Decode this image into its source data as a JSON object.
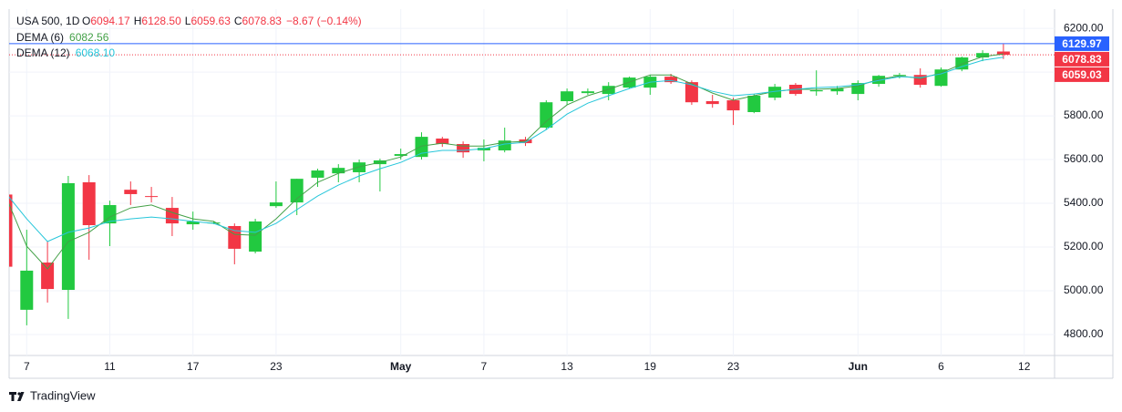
{
  "chart_data": {
    "type": "candlestick",
    "title": "USA 500, 1D",
    "quote": [
      {
        "label": "O",
        "value": 6094.17
      },
      {
        "label": "H",
        "value": 6128.5,
        "value_label": "6128.50"
      },
      {
        "label": "L",
        "value": 6059.63
      },
      {
        "label": "C",
        "value": 6078.83
      }
    ],
    "change": {
      "value": -8.67,
      "label": "−8.67 (−0.14%)"
    },
    "categories": [
      null,
      "7",
      null,
      null,
      null,
      "11",
      null,
      null,
      null,
      "17",
      null,
      null,
      null,
      "23",
      null,
      null,
      null,
      null,
      null,
      "May",
      null,
      null,
      null,
      "7",
      null,
      null,
      null,
      "13",
      null,
      null,
      null,
      "19",
      null,
      null,
      null,
      "23",
      null,
      null,
      null,
      null,
      null,
      "Jun",
      null,
      null,
      null,
      "6",
      null,
      null,
      null,
      "12"
    ],
    "series": [
      {
        "name": "USA 500",
        "up_color": "#22c940",
        "down_color": "#f23645",
        "open": [
          5440,
          4913,
          5129,
          5004,
          5496,
          5308,
          5462,
          5433,
          5379,
          5304,
          5310,
          5296,
          5179,
          5387,
          5404,
          5517,
          5537,
          5542,
          5579,
          5617,
          5612,
          5696,
          5671,
          5642,
          5642,
          5692,
          5746,
          5867,
          5904,
          5900,
          5929,
          5929,
          5979,
          5954,
          5867,
          5871,
          5817,
          5883,
          5942,
          5912,
          5912,
          5900,
          5946,
          5983,
          5987,
          5937,
          6012,
          6067,
          6094.17,
          null
        ],
        "high": [
          5450,
          5279,
          5225,
          5525,
          5529,
          5412,
          5500,
          5475,
          5429,
          5362,
          5318,
          5308,
          5329,
          5500,
          5512,
          5558,
          5579,
          5600,
          5604,
          5650,
          5725,
          5704,
          5683,
          5692,
          5746,
          5704,
          5871,
          5925,
          5925,
          5954,
          5979,
          5987,
          5992,
          5962,
          5896,
          5883,
          5900,
          5946,
          5950,
          6008,
          5937,
          5962,
          5987,
          5996,
          6017,
          6021,
          6071,
          6100,
          6128.5,
          null
        ],
        "low": [
          5100,
          4842,
          4946,
          4871,
          5142,
          5204,
          5392,
          5404,
          5250,
          5279,
          5305,
          5121,
          5171,
          5379,
          5346,
          5475,
          5496,
          5496,
          5454,
          5600,
          5600,
          5658,
          5608,
          5592,
          5633,
          5662,
          5737,
          5850,
          5896,
          5871,
          5925,
          5896,
          5946,
          5850,
          5837,
          5758,
          5812,
          5871,
          5892,
          5892,
          5896,
          5871,
          5933,
          5971,
          5929,
          5933,
          6004,
          6050,
          6059.63,
          null
        ],
        "close": [
          5110,
          5092,
          5008,
          5492,
          5300,
          5392,
          5442,
          5429,
          5308,
          5317,
          5312,
          5192,
          5317,
          5404,
          5512,
          5550,
          5562,
          5587,
          5596,
          5625,
          5704,
          5671,
          5633,
          5654,
          5687,
          5675,
          5862,
          5912,
          5912,
          5937,
          5975,
          5979,
          5954,
          5862,
          5854,
          5825,
          5892,
          5933,
          5900,
          5917,
          5925,
          5950,
          5983,
          5987,
          5942,
          6012,
          6067,
          6087,
          6078.83,
          null
        ]
      }
    ],
    "indicators": [
      {
        "name": "DEMA (6)",
        "color": "#43a047",
        "values": [
          5430,
          5204,
          5100,
          5225,
          5267,
          5337,
          5379,
          5392,
          5358,
          5329,
          5317,
          5258,
          5254,
          5329,
          5421,
          5496,
          5537,
          5567,
          5587,
          5612,
          5662,
          5675,
          5662,
          5662,
          5679,
          5683,
          5775,
          5850,
          5892,
          5921,
          5954,
          5987,
          5987,
          5946,
          5904,
          5871,
          5892,
          5912,
          5921,
          5921,
          5925,
          5937,
          5967,
          5983,
          5971,
          5996,
          6037,
          6071,
          6082.56,
          null
        ]
      },
      {
        "name": "DEMA (12)",
        "color": "#26c6da",
        "values": [
          5446,
          5329,
          5225,
          5267,
          5287,
          5317,
          5329,
          5337,
          5329,
          5317,
          5308,
          5275,
          5267,
          5308,
          5371,
          5433,
          5483,
          5525,
          5558,
          5587,
          5629,
          5642,
          5642,
          5650,
          5671,
          5679,
          5737,
          5808,
          5858,
          5892,
          5925,
          5954,
          5962,
          5942,
          5912,
          5892,
          5900,
          5912,
          5921,
          5929,
          5933,
          5942,
          5962,
          5979,
          5975,
          5992,
          6025,
          6054,
          6068.1,
          null
        ],
        "value_labels": [
          null,
          null,
          null,
          null,
          null,
          null,
          null,
          null,
          null,
          null,
          null,
          null,
          null,
          null,
          null,
          null,
          null,
          null,
          null,
          null,
          null,
          null,
          null,
          null,
          null,
          null,
          null,
          null,
          null,
          null,
          null,
          null,
          null,
          null,
          null,
          null,
          null,
          null,
          null,
          null,
          null,
          null,
          null,
          null,
          null,
          null,
          null,
          null,
          "6068.10",
          null
        ]
      }
    ],
    "price_tags": [
      {
        "value": 6129.97,
        "color": "#2962ff",
        "line": "solid"
      },
      {
        "value": 6078.83,
        "color": "#f23645",
        "line": "dotted"
      },
      {
        "value": 6059.03,
        "color": "#f23645"
      }
    ],
    "ylim": [
      4704,
      6288
    ],
    "yticks": [
      {
        "value": 4800,
        "label": "4800.00"
      },
      {
        "value": 5000,
        "label": "5000.00"
      },
      {
        "value": 5200,
        "label": "5200.00"
      },
      {
        "value": 5400,
        "label": "5400.00"
      },
      {
        "value": 5600,
        "label": "5600.00"
      },
      {
        "value": 5800,
        "label": "5800.00"
      },
      {
        "value": 6000,
        "label": "6000.00"
      },
      {
        "value": 6200,
        "label": "6200.00"
      }
    ],
    "grid": true,
    "footer": "TradingView"
  }
}
